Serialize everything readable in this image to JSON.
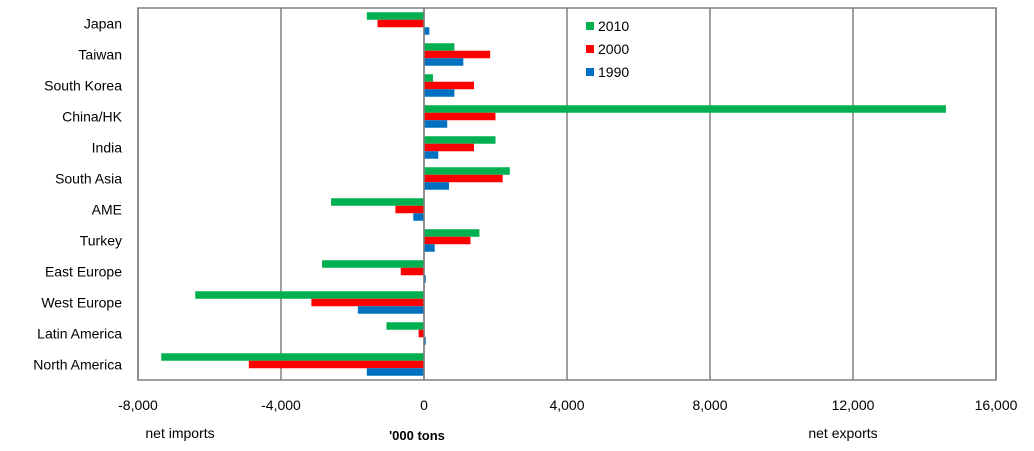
{
  "chart_data": {
    "type": "bar",
    "orientation": "horizontal",
    "categories": [
      "Japan",
      "Taiwan",
      "South Korea",
      "China/HK",
      "India",
      "South Asia",
      "AME",
      "Turkey",
      "East Europe",
      "West Europe",
      "Latin America",
      "North America"
    ],
    "series": [
      {
        "name": "2010",
        "color": "#00b050",
        "values": [
          -1600,
          850,
          250,
          14600,
          2000,
          2400,
          -2600,
          1550,
          -2850,
          -6400,
          -1050,
          -7350
        ]
      },
      {
        "name": "2000",
        "color": "#ff0000",
        "values": [
          -1300,
          1850,
          1400,
          2000,
          1400,
          2200,
          -800,
          1300,
          -650,
          -3150,
          -150,
          -4900
        ]
      },
      {
        "name": "1990",
        "color": "#0070c0",
        "values": [
          150,
          1100,
          850,
          650,
          400,
          700,
          -300,
          300,
          50,
          -1850,
          50,
          -1600
        ]
      }
    ],
    "xlim": [
      -8000,
      16000
    ],
    "xticks": [
      -8000,
      -4000,
      0,
      4000,
      8000,
      12000,
      16000
    ],
    "xtick_labels": [
      "-8,000",
      "-4,000",
      "0",
      "4,000",
      "8,000",
      "12,000",
      "16,000"
    ],
    "xlabel": "'000 tons",
    "left_annotation": "net imports",
    "right_annotation": "net exports",
    "legend_position": "top-center",
    "grid": true
  }
}
